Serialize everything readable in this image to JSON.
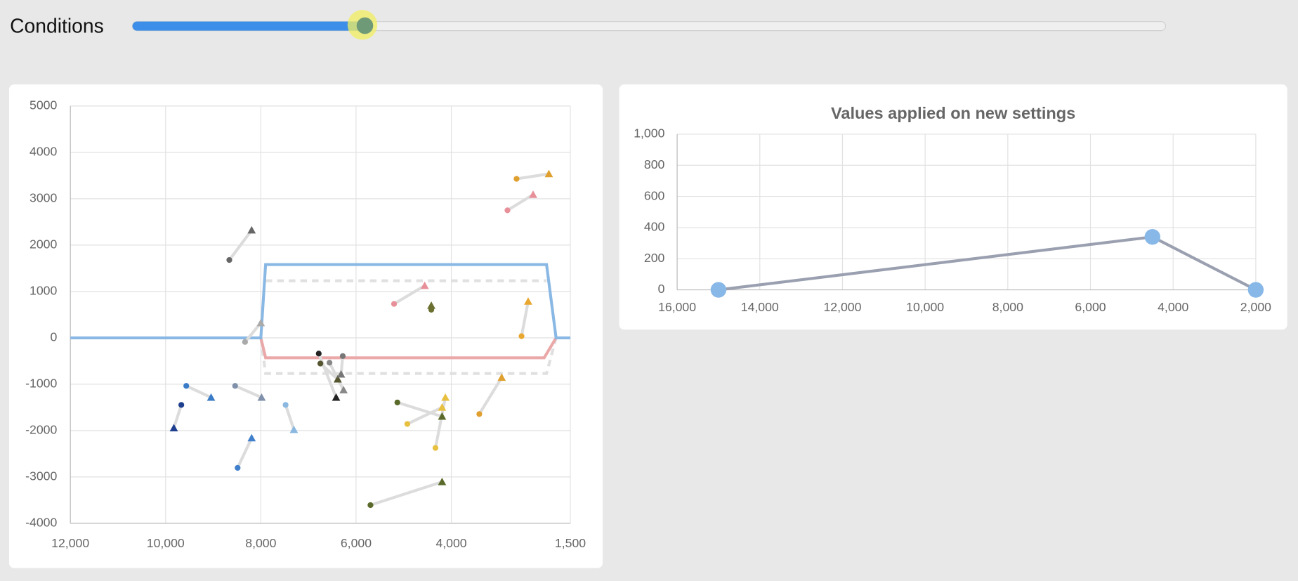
{
  "controls": {
    "slider": {
      "label": "Conditions",
      "value": 0.225,
      "range": [
        0,
        1
      ]
    }
  },
  "chart_data": [
    {
      "type": "scatter",
      "xlim": [
        12000,
        1500
      ],
      "ylim": [
        -4000,
        5000
      ],
      "xticks": [
        {
          "value": 12000,
          "label": "12,000"
        },
        {
          "value": 10000,
          "label": "10,000"
        },
        {
          "value": 8000,
          "label": "8,000"
        },
        {
          "value": 6000,
          "label": "6,000"
        },
        {
          "value": 4000,
          "label": "4,000"
        },
        {
          "value": 1500,
          "label": "1,500"
        }
      ],
      "yticks": [
        5000,
        4000,
        3000,
        2000,
        1000,
        0,
        -1000,
        -2000,
        -3000,
        -4000
      ],
      "grid": true,
      "lines": [
        {
          "color": "#e0e0e0",
          "dashed": true,
          "x": [
            7900,
            2000
          ],
          "y": [
            1230,
            1230
          ]
        },
        {
          "color": "#e0e0e0",
          "dashed": true,
          "x": [
            8000,
            7900,
            2000,
            1800
          ],
          "y": [
            0,
            -770,
            -770,
            0
          ]
        },
        {
          "color": "#eaa8a8",
          "dashed": false,
          "x": [
            8000,
            7900,
            2050,
            1800
          ],
          "y": [
            0,
            -430,
            -430,
            0
          ]
        },
        {
          "color": "#8ab8e4",
          "dashed": false,
          "x": [
            12000,
            8000,
            7900,
            2000,
            1800,
            1500
          ],
          "y": [
            0,
            0,
            1580,
            1580,
            0,
            0
          ]
        }
      ],
      "points": [
        {
          "color": "#666666",
          "x": [
            8662,
            8193
          ],
          "y": [
            1679,
            2321
          ]
        },
        {
          "color": "#3a7bc8",
          "x": [
            9566,
            9045
          ],
          "y": [
            -1036,
            -1286
          ]
        },
        {
          "color": "#1f3f8f",
          "x": [
            9670,
            9827
          ],
          "y": [
            -1446,
            -1946
          ]
        },
        {
          "color": "#3f7fcc",
          "x": [
            8488,
            8193
          ],
          "y": [
            -2804,
            -2161
          ]
        },
        {
          "color": "#8090aa",
          "x": [
            8540,
            7984
          ],
          "y": [
            -1036,
            -1286
          ]
        },
        {
          "color": "#8ab8e0",
          "x": [
            7480,
            7306
          ],
          "y": [
            -1446,
            -1982
          ]
        },
        {
          "color": "#aaaaaa",
          "x": [
            8332,
            8001
          ],
          "y": [
            -89,
            321
          ]
        },
        {
          "color": "#e8909a",
          "x": [
            2821,
            2282
          ],
          "y": [
            2750,
            3089
          ]
        },
        {
          "color": "#e0a030",
          "x": [
            2630,
            1951
          ],
          "y": [
            3429,
            3536
          ]
        },
        {
          "color": "#e8a830",
          "x": [
            2525,
            2386
          ],
          "y": [
            36,
            786
          ]
        },
        {
          "color": "#e8909a",
          "x": [
            5202,
            4559
          ],
          "y": [
            732,
            1125
          ]
        },
        {
          "color": "#6b7030",
          "x": [
            4420,
            4420
          ],
          "y": [
            607,
            696
          ]
        },
        {
          "color": "#e0a030",
          "x": [
            3412,
            2942
          ],
          "y": [
            -1643,
            -857
          ]
        },
        {
          "color": "#5a6a2a",
          "x": [
            5133,
            4194
          ],
          "y": [
            -1393,
            -1696
          ]
        },
        {
          "color": "#e8c040",
          "x": [
            4924,
            4194
          ],
          "y": [
            -1857,
            -1500
          ]
        },
        {
          "color": "#e8c040",
          "x": [
            4333,
            4125
          ],
          "y": [
            -2375,
            -1286
          ]
        },
        {
          "color": "#5a6a2a",
          "x": [
            5698,
            4194
          ],
          "y": [
            -3607,
            -3107
          ]
        },
        {
          "color": "#222222",
          "x": [
            6784,
            6419
          ],
          "y": [
            -339,
            -1286
          ]
        },
        {
          "color": "#555530",
          "x": [
            6750,
            6385
          ],
          "y": [
            -554,
            -893
          ]
        },
        {
          "color": "#888888",
          "x": [
            6558,
            6263
          ],
          "y": [
            -536,
            -1125
          ]
        },
        {
          "color": "#777777",
          "x": [
            6280,
            6315
          ],
          "y": [
            -393,
            -786
          ]
        }
      ]
    },
    {
      "type": "line",
      "title": "Values applied on new settings",
      "xlim": [
        16000,
        2000
      ],
      "ylim": [
        0,
        1000
      ],
      "xticks": [
        {
          "value": 16000,
          "label": "16,000"
        },
        {
          "value": 14000,
          "label": "14,000"
        },
        {
          "value": 12000,
          "label": "12,000"
        },
        {
          "value": 10000,
          "label": "10,000"
        },
        {
          "value": 8000,
          "label": "8,000"
        },
        {
          "value": 6000,
          "label": "6,000"
        },
        {
          "value": 4000,
          "label": "4,000"
        },
        {
          "value": 2000,
          "label": "2,000"
        }
      ],
      "yticks": [
        0,
        200,
        400,
        600,
        800,
        {
          "value": 1000,
          "label": "1,000"
        }
      ],
      "grid": true,
      "series": [
        {
          "color": "#9aa0b0",
          "marker_color": "#88b8e8",
          "x": [
            15000,
            4500,
            2000
          ],
          "values": [
            0,
            340,
            0
          ]
        }
      ]
    }
  ]
}
